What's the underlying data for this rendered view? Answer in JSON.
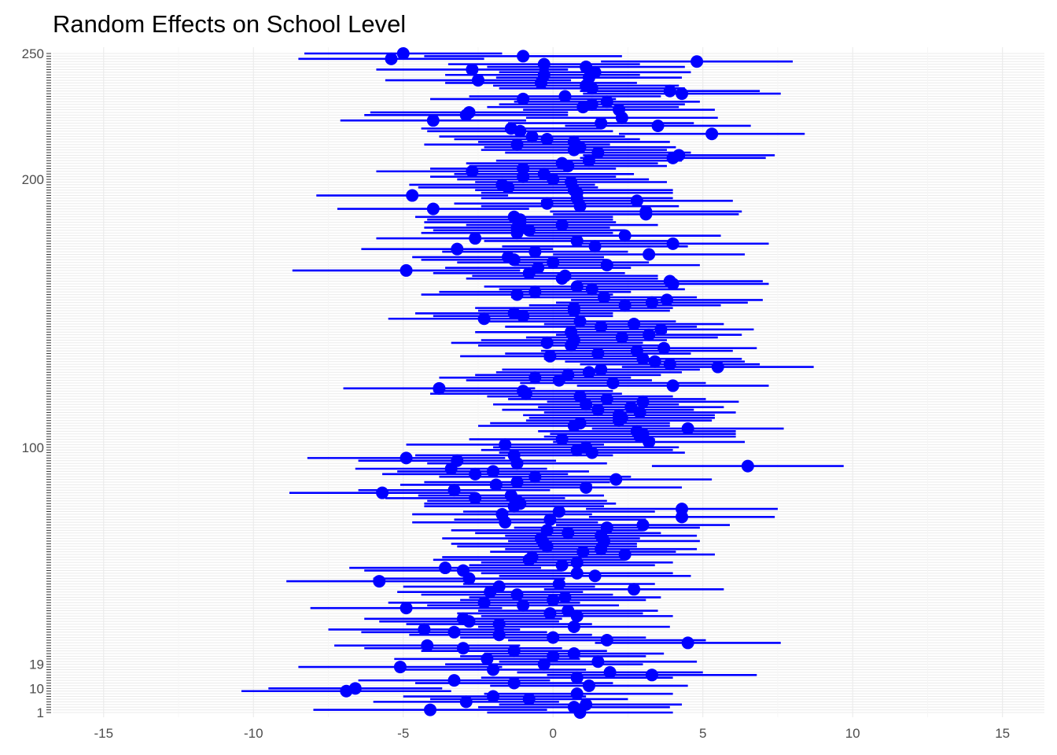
{
  "chart_data": {
    "type": "scatter",
    "title": "Random Effects on School Level",
    "xlabel": "",
    "ylabel": "",
    "xlim": [
      -16.7,
      16.4
    ],
    "x_ticks": [
      -15,
      -10,
      -5,
      0,
      5,
      10,
      15
    ],
    "x_tick_labels": [
      "-15",
      "-10",
      "-5",
      "0",
      "5",
      "10",
      "15"
    ],
    "y_visible_labels": [
      "1",
      "10",
      "19",
      "100",
      "200",
      "250"
    ],
    "grid": true,
    "legend": "none",
    "colors": {
      "point": "#0000ff",
      "interval": "#0000ff",
      "major_grid": "#ebebeb",
      "minor_grid": "#f5f5f5"
    },
    "series": [
      {
        "estimates": [
          0.9,
          -4.1,
          0.7,
          1.1,
          -2.9,
          -0.8,
          -2.0,
          0.8,
          -6.9,
          -6.6,
          1.2,
          -1.3,
          -3.3,
          0.8,
          3.3,
          1.9,
          -2.0,
          -5.1,
          -0.3,
          1.5,
          -2.2,
          0.0,
          0.7,
          -1.3,
          -3.0,
          -4.2,
          4.5,
          1.8,
          0.0,
          -1.8,
          -3.3,
          -4.3,
          0.7,
          -1.8,
          -2.8,
          -3.0,
          0.8,
          -0.1,
          0.5,
          -4.9,
          -1.0,
          -2.3,
          0.0,
          0.4,
          -1.2,
          -2.1,
          2.7,
          -1.8,
          0.2,
          -5.8,
          -2.8,
          1.4,
          0.8,
          -3.0,
          -3.6,
          0.3,
          0.8,
          -0.8,
          -0.7,
          2.4,
          1.0,
          1.6,
          -0.2,
          -0.3,
          1.7,
          -0.4,
          1.6,
          0.5,
          -0.2,
          1.8,
          3.0,
          -1.6,
          -0.1,
          4.3,
          -1.7,
          0.2,
          4.3,
          -1.3,
          -1.1,
          -1.2,
          -2.6,
          -1.4,
          -5.7,
          -3.3,
          1.1,
          -1.9,
          -1.2,
          2.1,
          -0.6,
          -2.6,
          -2.0,
          -3.4,
          6.5,
          -1.2,
          -3.2,
          -4.9,
          -1.3,
          1.3,
          0.8,
          1.1,
          -1.6,
          3.2,
          0.3,
          2.9,
          3.0,
          2.8,
          4.5,
          0.7,
          0.9,
          2.2,
          2.3,
          2.2,
          2.9,
          1.5,
          2.6,
          1.1,
          3.0,
          1.8,
          0.9,
          -0.9,
          -1.0,
          -3.8,
          4.0,
          2.0,
          0.2,
          -0.6,
          0.5,
          1.2,
          1.6,
          5.5,
          3.9,
          3.4,
          3.0,
          -0.1,
          1.5,
          2.8,
          3.7,
          0.6,
          -0.2,
          0.7,
          2.3,
          3.2,
          0.6,
          3.6,
          1.6,
          2.7,
          0.9,
          -2.3,
          -1.0,
          -1.3,
          0.7,
          0.7,
          2.4,
          3.3,
          3.8,
          1.7,
          -1.2,
          -0.6,
          1.3,
          0.8,
          4.0,
          3.9,
          0.3,
          0.4,
          -0.8,
          -4.9,
          -0.5,
          1.8,
          0.0,
          -1.3,
          -1.5,
          3.2,
          -0.6,
          -3.2,
          1.4,
          4.0,
          0.8,
          -2.6,
          2.4,
          -1.2,
          -0.8,
          -1.2,
          0.3,
          -1.1,
          -1.1,
          -1.3,
          3.1,
          3.1,
          -4.0,
          0.9,
          -0.2,
          2.8,
          0.8,
          -4.7,
          0.8,
          0.7,
          -1.5,
          -1.7,
          0.6,
          0.0,
          -1.0,
          -0.3,
          -2.7,
          -1.0,
          0.5,
          0.3,
          1.2,
          4.0,
          4.2,
          1.5,
          0.7,
          0.9,
          -1.2,
          0.7,
          -0.2,
          -0.7,
          5.3,
          -1.1,
          -1.4,
          3.5,
          1.6,
          -4.0,
          2.3,
          -2.9,
          -2.8,
          2.2,
          1.0,
          1.3,
          1.8,
          -1.0,
          0.4,
          4.3,
          3.9,
          1.3,
          1.1,
          -0.4,
          -2.5,
          1.2,
          -0.3,
          1.4,
          -2.7,
          1.1,
          -0.3,
          4.8,
          -5.4,
          -1.0,
          -5.0
        ],
        "lower": [
          -2.2,
          -8.0,
          -2.5,
          -1.8,
          -6.0,
          -4.1,
          -5.0,
          -2.3,
          -10.4,
          -9.5,
          -2.1,
          -4.6,
          -6.5,
          -2.4,
          -0.2,
          -1.2,
          -5.1,
          -8.5,
          -3.6,
          -1.8,
          -5.3,
          -3.1,
          -2.3,
          -4.4,
          -6.3,
          -7.3,
          1.4,
          -1.5,
          -3.1,
          -4.8,
          -6.4,
          -7.5,
          -2.5,
          -4.9,
          -5.8,
          -6.3,
          -2.4,
          -3.2,
          -2.5,
          -8.1,
          -4.2,
          -5.5,
          -3.1,
          -2.8,
          -4.4,
          -5.2,
          -0.3,
          -5.0,
          -3.0,
          -8.9,
          -6.0,
          -1.8,
          -2.4,
          -6.3,
          -6.8,
          -2.8,
          -2.4,
          -4.0,
          -3.7,
          -0.6,
          -2.1,
          -1.6,
          -3.2,
          -3.4,
          -1.5,
          -3.7,
          -1.6,
          -2.6,
          -3.4,
          -1.3,
          0.1,
          -4.7,
          -3.3,
          1.2,
          -4.7,
          -3.0,
          1.1,
          -4.3,
          -4.3,
          -4.2,
          -5.6,
          -4.5,
          -8.8,
          -6.5,
          -2.1,
          -5.1,
          -4.3,
          -1.1,
          -3.8,
          -5.7,
          -5.2,
          -6.6,
          3.3,
          -4.2,
          -6.5,
          -8.2,
          -4.6,
          -1.8,
          -2.4,
          -2.0,
          -4.9,
          0.0,
          -2.8,
          -0.3,
          -0.1,
          -0.5,
          1.3,
          -2.5,
          -2.1,
          -0.9,
          -0.8,
          -1.0,
          -0.3,
          -1.7,
          -0.5,
          -2.0,
          -0.2,
          -1.5,
          -2.2,
          -4.1,
          -4.0,
          -7.0,
          0.8,
          -1.1,
          -2.9,
          -3.8,
          -2.6,
          -1.9,
          -1.7,
          2.3,
          0.9,
          0.4,
          -0.3,
          -3.1,
          -1.6,
          -0.4,
          0.6,
          -2.5,
          -3.4,
          -2.4,
          -0.9,
          0.1,
          -2.6,
          0.5,
          -1.6,
          -0.3,
          -2.3,
          -5.5,
          -4.0,
          -4.6,
          -2.5,
          -2.6,
          -0.8,
          0.1,
          0.6,
          -1.4,
          -4.4,
          -3.8,
          -1.8,
          -2.3,
          0.8,
          0.8,
          -2.9,
          -2.7,
          -4.0,
          -8.7,
          -3.6,
          -1.3,
          -3.2,
          -4.4,
          -4.7,
          0.0,
          -3.7,
          -6.4,
          -1.7,
          0.8,
          -2.3,
          -5.9,
          -0.8,
          -4.4,
          -4.0,
          -4.3,
          -2.9,
          -4.3,
          -4.2,
          -4.6,
          0.0,
          -0.1,
          -7.2,
          -2.4,
          -3.3,
          -0.4,
          -2.4,
          -7.9,
          -2.4,
          -2.6,
          -4.5,
          -4.8,
          -2.6,
          -3.2,
          -4.1,
          -3.3,
          -5.9,
          -4.1,
          -2.8,
          -2.9,
          -1.9,
          0.9,
          1.0,
          -1.6,
          -2.4,
          -2.3,
          -4.3,
          -2.5,
          -3.3,
          -3.8,
          2.2,
          -4.2,
          -4.4,
          0.4,
          -1.5,
          -7.1,
          -0.9,
          -6.3,
          -6.1,
          -1.0,
          -2.2,
          -1.8,
          -1.3,
          -4.1,
          -2.8,
          1.0,
          0.9,
          -1.8,
          -2.0,
          -3.6,
          -5.6,
          -1.9,
          -3.6,
          -1.8,
          -5.9,
          -2.2,
          -3.5,
          1.6,
          -8.5,
          -4.3,
          -8.3
        ],
        "upper": [
          4.0,
          -0.2,
          3.9,
          4.3,
          0.2,
          2.5,
          1.1,
          4.0,
          -3.4,
          -3.7,
          4.5,
          2.0,
          -0.1,
          4.0,
          6.8,
          5.0,
          1.1,
          -1.7,
          3.0,
          4.8,
          0.9,
          3.1,
          3.7,
          1.8,
          0.3,
          -1.1,
          7.6,
          5.1,
          3.1,
          1.3,
          -0.2,
          -1.1,
          3.9,
          1.3,
          0.2,
          0.3,
          4.0,
          3.0,
          3.5,
          -1.7,
          2.2,
          0.9,
          3.1,
          3.6,
          2.0,
          1.0,
          5.7,
          1.4,
          3.4,
          -2.7,
          0.4,
          4.6,
          4.0,
          0.3,
          -0.4,
          3.4,
          4.0,
          2.4,
          2.3,
          5.4,
          4.1,
          4.8,
          2.8,
          2.8,
          4.9,
          2.9,
          4.8,
          3.6,
          3.0,
          4.9,
          5.9,
          1.5,
          3.1,
          7.4,
          1.3,
          3.4,
          7.5,
          1.7,
          2.1,
          1.8,
          0.4,
          1.7,
          -2.6,
          -0.1,
          4.3,
          1.3,
          1.9,
          5.3,
          2.6,
          0.5,
          1.2,
          -0.2,
          9.7,
          1.8,
          0.1,
          -1.6,
          2.0,
          4.4,
          4.0,
          4.2,
          1.7,
          6.4,
          3.4,
          6.1,
          6.1,
          6.1,
          7.7,
          3.9,
          3.9,
          5.3,
          5.4,
          5.4,
          6.1,
          4.7,
          5.7,
          4.2,
          6.2,
          5.1,
          4.0,
          2.3,
          2.0,
          -0.6,
          7.2,
          5.1,
          3.3,
          2.6,
          3.6,
          4.3,
          4.9,
          8.7,
          6.9,
          6.4,
          6.3,
          2.9,
          4.6,
          6.0,
          6.8,
          3.7,
          3.0,
          3.8,
          5.5,
          6.3,
          3.8,
          6.7,
          4.8,
          5.7,
          4.1,
          0.9,
          2.0,
          2.0,
          3.9,
          4.0,
          5.6,
          6.5,
          7.0,
          4.8,
          2.0,
          2.6,
          4.4,
          3.9,
          7.2,
          7.0,
          3.5,
          3.5,
          2.4,
          -1.1,
          2.6,
          4.9,
          3.2,
          1.8,
          1.7,
          6.4,
          2.5,
          0.0,
          4.5,
          7.2,
          3.9,
          0.7,
          5.6,
          2.0,
          2.4,
          1.9,
          3.5,
          2.1,
          2.0,
          2.0,
          6.2,
          6.3,
          -0.8,
          4.2,
          2.9,
          6.0,
          4.0,
          -1.5,
          4.0,
          4.0,
          1.5,
          1.4,
          3.8,
          3.2,
          2.1,
          2.7,
          0.5,
          2.1,
          3.8,
          3.5,
          4.3,
          7.1,
          7.4,
          4.6,
          3.8,
          4.1,
          1.9,
          3.9,
          2.9,
          2.4,
          8.4,
          2.0,
          1.6,
          6.6,
          4.7,
          -0.9,
          5.5,
          0.5,
          0.5,
          5.4,
          4.2,
          4.4,
          4.9,
          2.1,
          3.6,
          7.6,
          6.9,
          4.4,
          4.2,
          2.8,
          0.6,
          4.3,
          2.9,
          4.6,
          0.5,
          4.4,
          2.9,
          8.0,
          -2.3,
          2.3,
          -1.7
        ]
      }
    ]
  }
}
